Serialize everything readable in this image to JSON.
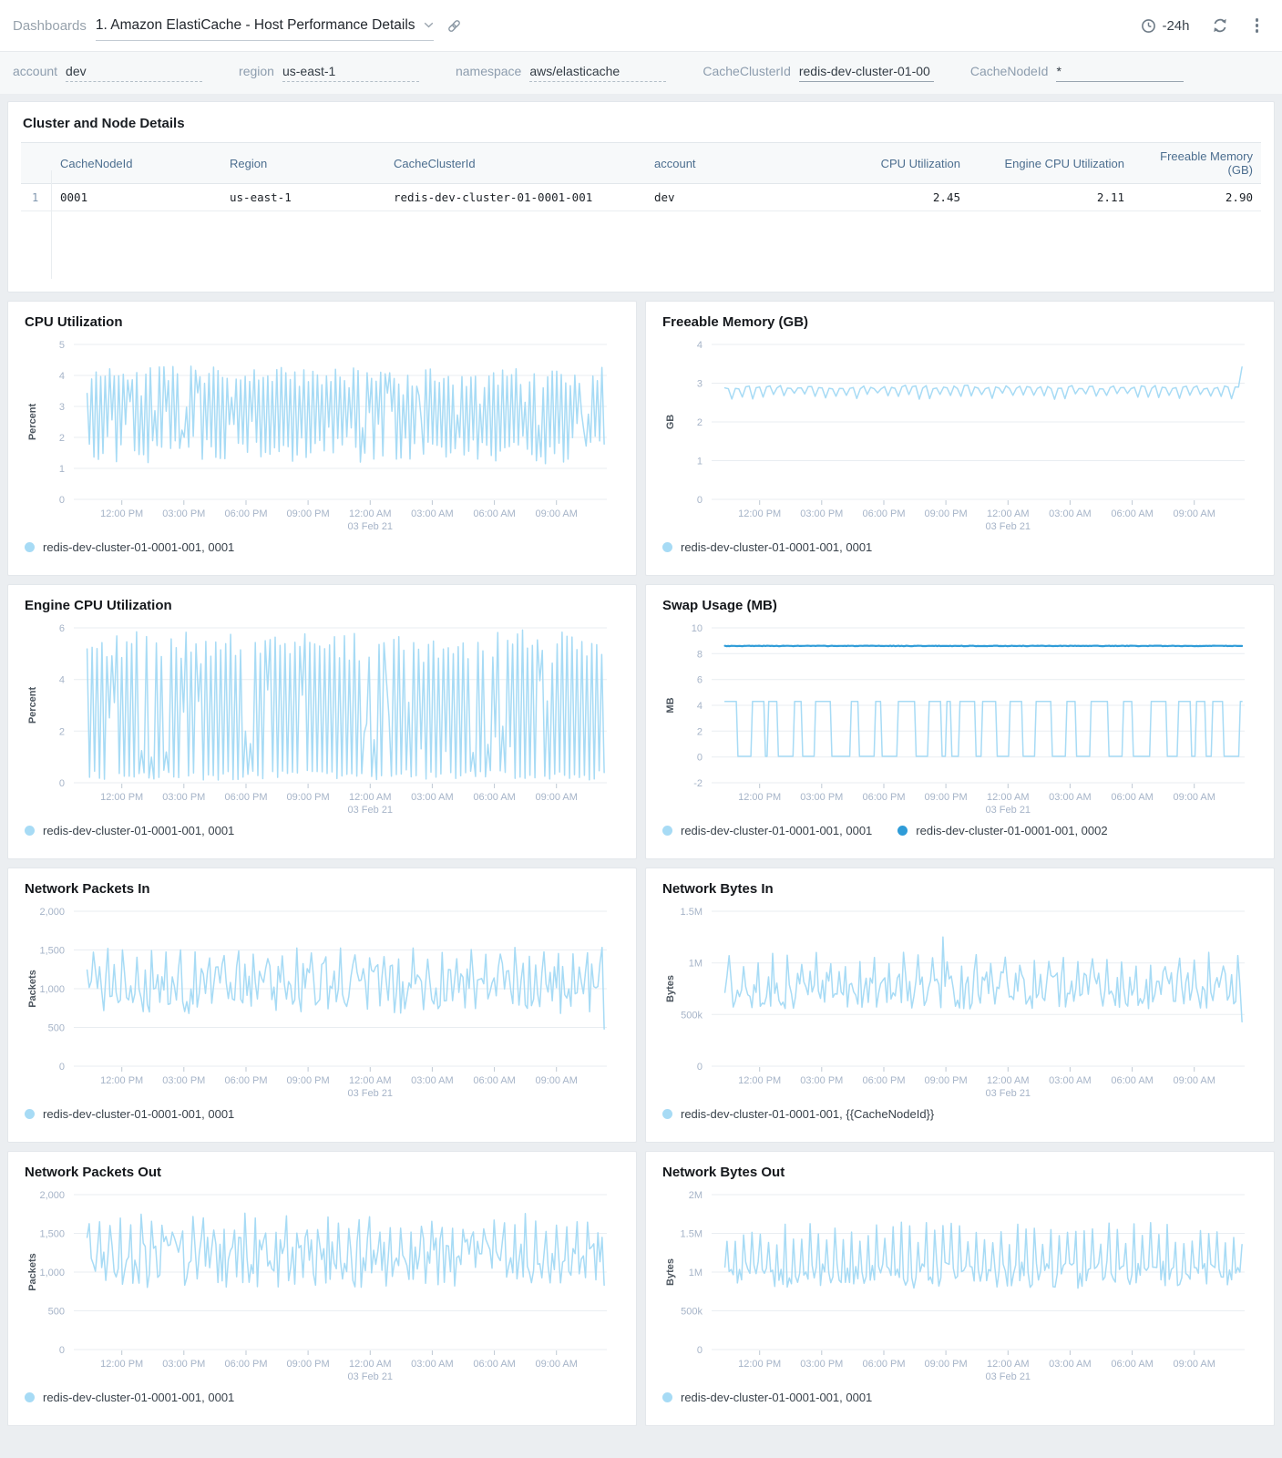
{
  "header": {
    "breadcrumb": "Dashboards",
    "title": "1. Amazon ElastiCache - Host Performance Details",
    "time_range": "-24h",
    "icons": {
      "title_dropdown": "chevron-down",
      "share": "chain-link",
      "time": "clock",
      "refresh": "refresh-arrows",
      "menu": "kebab-vertical"
    }
  },
  "filters": [
    {
      "label": "account",
      "value": "dev",
      "underline": "dashed"
    },
    {
      "label": "region",
      "value": "us-east-1",
      "underline": "dashed"
    },
    {
      "label": "namespace",
      "value": "aws/elasticache",
      "underline": "dashed"
    },
    {
      "label": "CacheClusterId",
      "value": "redis-dev-cluster-01-00",
      "underline": "solid"
    },
    {
      "label": "CacheNodeId",
      "value": "*",
      "underline": "solid"
    }
  ],
  "table_panel": {
    "title": "Cluster and Node Details",
    "columns": [
      {
        "label": "CacheNodeId",
        "align": "left"
      },
      {
        "label": "Region",
        "align": "left"
      },
      {
        "label": "CacheClusterId",
        "align": "left"
      },
      {
        "label": "account",
        "align": "left"
      },
      {
        "label": "CPU Utilization",
        "align": "right"
      },
      {
        "label": "Engine CPU Utilization",
        "align": "right"
      },
      {
        "label": "Freeable Memory (GB)",
        "align": "right"
      }
    ],
    "rows": [
      {
        "num": "1",
        "cells": [
          "0001",
          "us-east-1",
          "redis-dev-cluster-01-0001-001",
          "dev",
          "2.45",
          "2.11",
          "2.90"
        ]
      }
    ]
  },
  "x_axis": {
    "ticks": [
      "12:00 PM",
      "03:00 PM",
      "06:00 PM",
      "09:00 PM",
      "12:00 AM",
      "03:00 AM",
      "06:00 AM",
      "09:00 AM"
    ],
    "date_label": "03 Feb 21",
    "date_tick_index": 4
  },
  "colors": {
    "series_light": "#A7DBF5",
    "series_dark": "#2F9CD8",
    "grid": "#E9EDF1",
    "tick_label": "#A6B4C8",
    "tick_mark": "#BFC9D4",
    "axis_unit": "#4D565F",
    "legend_text": "#39424B",
    "page_bg": "#EBEEF1",
    "panel_bg": "#FFFFFF",
    "panel_border": "#E3E7EB",
    "table_header_text": "#4C6E8F",
    "row_number": "#8097AF",
    "filter_label": "#8D9DAE",
    "filter_value": "#333C45",
    "breadcrumb": "#97A2AC",
    "icon": "#6E7B87"
  },
  "charts": [
    {
      "key": "cpu-utilization",
      "title": "CPU Utilization",
      "type": "line",
      "unit": "Percent",
      "ymin": 0,
      "ymax": 5,
      "yticks": [
        {
          "v": 0,
          "l": "0"
        },
        {
          "v": 1,
          "l": "1"
        },
        {
          "v": 2,
          "l": "2"
        },
        {
          "v": 3,
          "l": "3"
        },
        {
          "v": 4,
          "l": "4"
        },
        {
          "v": 5,
          "l": "5"
        }
      ],
      "value_range": [
        1.1,
        4.3
      ],
      "series": [
        {
          "legend": "redis-dev-cluster-01-0001-001, 0001",
          "color": "series_light",
          "wave": {
            "kind": "zigzag",
            "n": 230,
            "high": [
              3.6,
              4.3
            ],
            "low": [
              1.15,
              2.05
            ],
            "mid_chance": 0.16,
            "seed": 7
          }
        }
      ]
    },
    {
      "key": "freeable-memory",
      "title": "Freeable Memory (GB)",
      "type": "line",
      "unit": "GB",
      "ymin": 0,
      "ymax": 4,
      "yticks": [
        {
          "v": 0,
          "l": "0"
        },
        {
          "v": 1,
          "l": "1"
        },
        {
          "v": 2,
          "l": "2"
        },
        {
          "v": 3,
          "l": "3"
        },
        {
          "v": 4,
          "l": "4"
        }
      ],
      "value_range": [
        2.6,
        3.42
      ],
      "series": [
        {
          "legend": "redis-dev-cluster-01-0001-001, 0001",
          "color": "series_light",
          "wave": {
            "kind": "dips",
            "n": 150,
            "base": 2.9,
            "jitter": 0.05,
            "dip_every": 3,
            "dip_depth": [
              0.15,
              0.32
            ],
            "end": 3.42,
            "seed": 12
          }
        }
      ]
    },
    {
      "key": "engine-cpu-utilization",
      "title": "Engine CPU Utilization",
      "type": "line",
      "unit": "Percent",
      "ymin": 0,
      "ymax": 6,
      "yticks": [
        {
          "v": 0,
          "l": "0"
        },
        {
          "v": 2,
          "l": "2"
        },
        {
          "v": 4,
          "l": "4"
        },
        {
          "v": 6,
          "l": "6"
        }
      ],
      "value_range": [
        0.1,
        5.95
      ],
      "series": [
        {
          "legend": "redis-dev-cluster-01-0001-001, 0001",
          "color": "series_light",
          "wave": {
            "kind": "zigzag",
            "n": 210,
            "high": [
              4.6,
              5.95
            ],
            "low": [
              0.1,
              0.5
            ],
            "mid_chance": 0.12,
            "seed": 21
          }
        }
      ]
    },
    {
      "key": "swap-usage",
      "title": "Swap Usage (MB)",
      "type": "line",
      "unit": "MB",
      "ymin": -2,
      "ymax": 10,
      "yticks": [
        {
          "v": -2,
          "l": "-2"
        },
        {
          "v": 0,
          "l": "0"
        },
        {
          "v": 2,
          "l": "2"
        },
        {
          "v": 4,
          "l": "4"
        },
        {
          "v": 6,
          "l": "6"
        },
        {
          "v": 8,
          "l": "8"
        },
        {
          "v": 10,
          "l": "10"
        }
      ],
      "value_range": [
        0,
        8.6
      ],
      "series": [
        {
          "legend": "redis-dev-cluster-01-0001-001, 0001",
          "color": "series_light",
          "wave": {
            "kind": "square",
            "n": 320,
            "low": 0.05,
            "high": 4.3,
            "hold": [
              2,
              12
            ],
            "seed": 33
          }
        },
        {
          "legend": "redis-dev-cluster-01-0001-001, 0002",
          "color": "series_dark",
          "wave": {
            "kind": "flat",
            "n": 320,
            "value": 8.6,
            "seed": 3
          }
        }
      ]
    },
    {
      "key": "network-packets-in",
      "title": "Network Packets In",
      "type": "line",
      "unit": "Packets",
      "ymin": 0,
      "ymax": 2000,
      "yticks": [
        {
          "v": 0,
          "l": "0"
        },
        {
          "v": 500,
          "l": "500"
        },
        {
          "v": 1000,
          "l": "1,000"
        },
        {
          "v": 1500,
          "l": "1,500"
        },
        {
          "v": 2000,
          "l": "2,000"
        }
      ],
      "value_range": [
        480,
        1550
      ],
      "series": [
        {
          "legend": "redis-dev-cluster-01-0001-001, 0001",
          "color": "series_light",
          "wave": {
            "kind": "spiky",
            "n": 250,
            "base": [
              680,
              1340
            ],
            "spike": [
              1380,
              1550
            ],
            "spike_every": 7,
            "spike_phase": 3,
            "end": 480,
            "seed": 41
          }
        }
      ]
    },
    {
      "key": "network-bytes-in",
      "title": "Network Bytes In",
      "type": "line",
      "unit": "Bytes",
      "ymin": 0,
      "ymax": 1500000,
      "yticks": [
        {
          "v": 0,
          "l": "0"
        },
        {
          "v": 500000,
          "l": "500k"
        },
        {
          "v": 1000000,
          "l": "1M"
        },
        {
          "v": 1500000,
          "l": "1.5M"
        }
      ],
      "value_range": [
        430000,
        1250000
      ],
      "series": [
        {
          "legend": "redis-dev-cluster-01-0001-001, {{CacheNodeId}}",
          "color": "series_light",
          "wave": {
            "kind": "spiky",
            "n": 250,
            "base": [
              550000,
              920000
            ],
            "spike": [
              950000,
              1120000
            ],
            "spike_every": 7,
            "spike_phase": 2,
            "peak": {
              "index": 105,
              "value": 1250000
            },
            "end": 430000,
            "seed": 55
          }
        }
      ]
    },
    {
      "key": "network-packets-out",
      "title": "Network Packets Out",
      "type": "line",
      "unit": "Packets",
      "ymin": 0,
      "ymax": 2000,
      "yticks": [
        {
          "v": 0,
          "l": "0"
        },
        {
          "v": 500,
          "l": "500"
        },
        {
          "v": 1000,
          "l": "1,000"
        },
        {
          "v": 1500,
          "l": "1,500"
        },
        {
          "v": 2000,
          "l": "2,000"
        }
      ],
      "value_range": [
        750,
        1790
      ],
      "series": [
        {
          "legend": "redis-dev-cluster-01-0001-001, 0001",
          "color": "series_light",
          "wave": {
            "kind": "spiky",
            "n": 250,
            "base": [
              800,
              1460
            ],
            "spike": [
              1500,
              1790
            ],
            "spike_every": 5,
            "spike_phase": 1,
            "seed": 67
          }
        }
      ]
    },
    {
      "key": "network-bytes-out",
      "title": "Network Bytes Out",
      "type": "line",
      "unit": "Bytes",
      "ymin": 0,
      "ymax": 2000000,
      "yticks": [
        {
          "v": 0,
          "l": "0"
        },
        {
          "v": 500000,
          "l": "500k"
        },
        {
          "v": 1000000,
          "l": "1M"
        },
        {
          "v": 1500000,
          "l": "1.5M"
        },
        {
          "v": 2000000,
          "l": "2M"
        }
      ],
      "value_range": [
        750000,
        1650000
      ],
      "series": [
        {
          "legend": "redis-dev-cluster-01-0001-001, 0001",
          "color": "series_light",
          "wave": {
            "kind": "spiky",
            "n": 250,
            "base": [
              790000,
              1150000
            ],
            "spike": [
              1350000,
              1650000
            ],
            "spike_every": 4,
            "spike_phase": 1,
            "seed": 71
          }
        }
      ]
    }
  ]
}
